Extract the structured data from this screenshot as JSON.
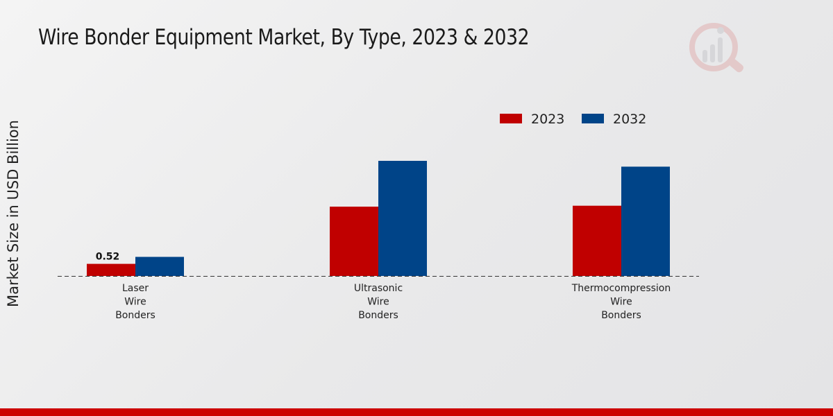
{
  "chart_data": {
    "type": "bar",
    "title": "Wire Bonder Equipment Market, By Type, 2023 & 2032",
    "xlabel": "",
    "ylabel": "Market Size in USD Billion",
    "categories": [
      [
        "Laser",
        "Wire",
        "Bonders"
      ],
      [
        "Ultrasonic",
        "Wire",
        "Bonders"
      ],
      [
        "Thermocompression",
        "Wire",
        "Bonders"
      ]
    ],
    "series": [
      {
        "name": "2023",
        "color": "#c00000",
        "values": [
          0.52,
          2.98,
          3.02
        ]
      },
      {
        "name": "2032",
        "color": "#004488",
        "values": [
          0.82,
          4.95,
          4.7
        ]
      }
    ],
    "data_labels": [
      {
        "series": 0,
        "index": 0,
        "text": "0.52"
      }
    ],
    "ylim": [
      0,
      6.5
    ],
    "legend_position": "top-right",
    "grid": false
  }
}
